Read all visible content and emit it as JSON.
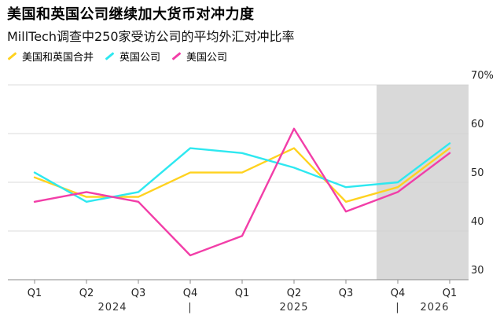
{
  "header": {
    "title": "美国和英国公司继续加大货币对冲力度",
    "subtitle": "MillTech调查中250家受访公司的平均外汇对冲比率"
  },
  "colors": {
    "combined": "#FFD21F",
    "uk": "#2EE8F0",
    "us": "#F23EA8",
    "forecast_shade": "#D9D9D9",
    "grid": "#CFCFCF"
  },
  "chart_data": {
    "type": "line",
    "title": "美国和英国公司继续加大货币对冲力度",
    "subtitle": "MillTech调查中250家受访公司的平均外汇对冲比率",
    "categories": [
      "Q1",
      "Q2",
      "Q3",
      "Q4",
      "Q1",
      "Q2",
      "Q3",
      "Q4",
      "Q1"
    ],
    "year_labels": [
      "2024",
      "2025",
      "2026"
    ],
    "year_separators": [
      "|",
      "|"
    ],
    "y_ticks": [
      "70%",
      "60",
      "50",
      "40",
      "30"
    ],
    "ylim": [
      30,
      70
    ],
    "grid": true,
    "legend_position": "top-left",
    "shaded_region": {
      "from_category_index": 7,
      "to_category_index": 8
    },
    "series": [
      {
        "name": "美国和英国合并",
        "color_key": "combined",
        "values": [
          51,
          47,
          47,
          52,
          52,
          57,
          46,
          49,
          57
        ]
      },
      {
        "name": "英国公司",
        "color_key": "uk",
        "values": [
          52,
          46,
          48,
          57,
          56,
          53,
          49,
          50,
          58
        ]
      },
      {
        "name": "美国公司",
        "color_key": "us",
        "values": [
          46,
          48,
          46,
          35,
          39,
          61,
          44,
          48,
          56
        ]
      }
    ]
  }
}
